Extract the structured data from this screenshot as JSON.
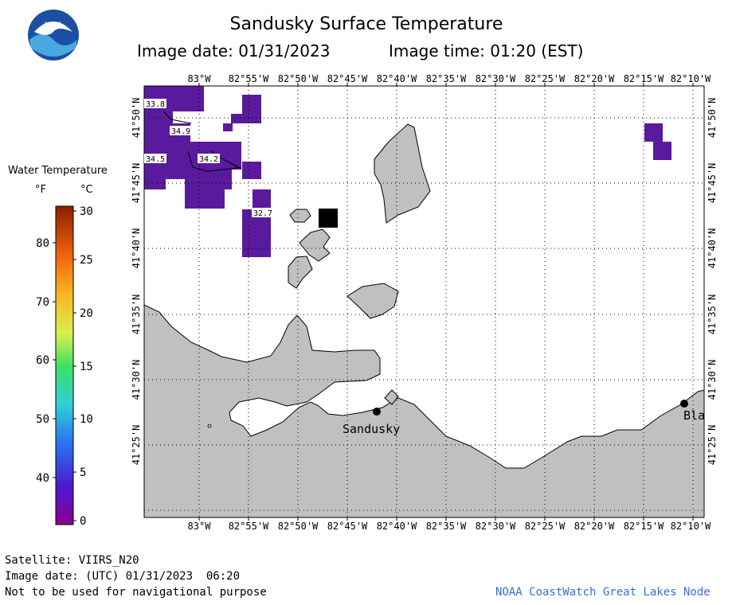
{
  "header": {
    "title": "Sandusky Surface Temperature",
    "image_date": "Image date: 01/31/2023",
    "image_time": "Image time: 01:20 (EST)"
  },
  "legend": {
    "title": "Water Temperature",
    "unit_f": "°F",
    "unit_c": "°C",
    "f_ticks": [
      "80",
      "70",
      "60",
      "50",
      "40"
    ],
    "c_ticks": [
      "30",
      "25",
      "20",
      "15",
      "10",
      "5",
      "0"
    ]
  },
  "map": {
    "lon_labels": [
      "83°W",
      "82°55'W",
      "82°50'W",
      "82°45'W",
      "82°40'W",
      "82°35'W",
      "82°30'W",
      "82°25'W",
      "82°20'W",
      "82°15'W",
      "82°10'W"
    ],
    "lat_labels": [
      "41°50'N",
      "41°45'N",
      "41°40'N",
      "41°35'N",
      "41°30'N",
      "41°25'N"
    ],
    "temperature_labels": [
      "33.8",
      "34.9",
      "34.5",
      "34.2",
      "32.7"
    ],
    "place_labels": [
      "Sandusky",
      "Bla"
    ]
  },
  "footer": {
    "satellite": "Satellite: VIIRS_N20",
    "utc_date": "Image date: (UTC) 01/31/2023  06:20",
    "disclaimer": "Not to be used for navigational purpose",
    "credit": "NOAA CoastWatch Great Lakes Node"
  },
  "colors": {
    "land": "#c0c0c0",
    "cold_water": "#5a1a9e",
    "no_data": "#000000",
    "credit_text": "#3a6fd0"
  }
}
